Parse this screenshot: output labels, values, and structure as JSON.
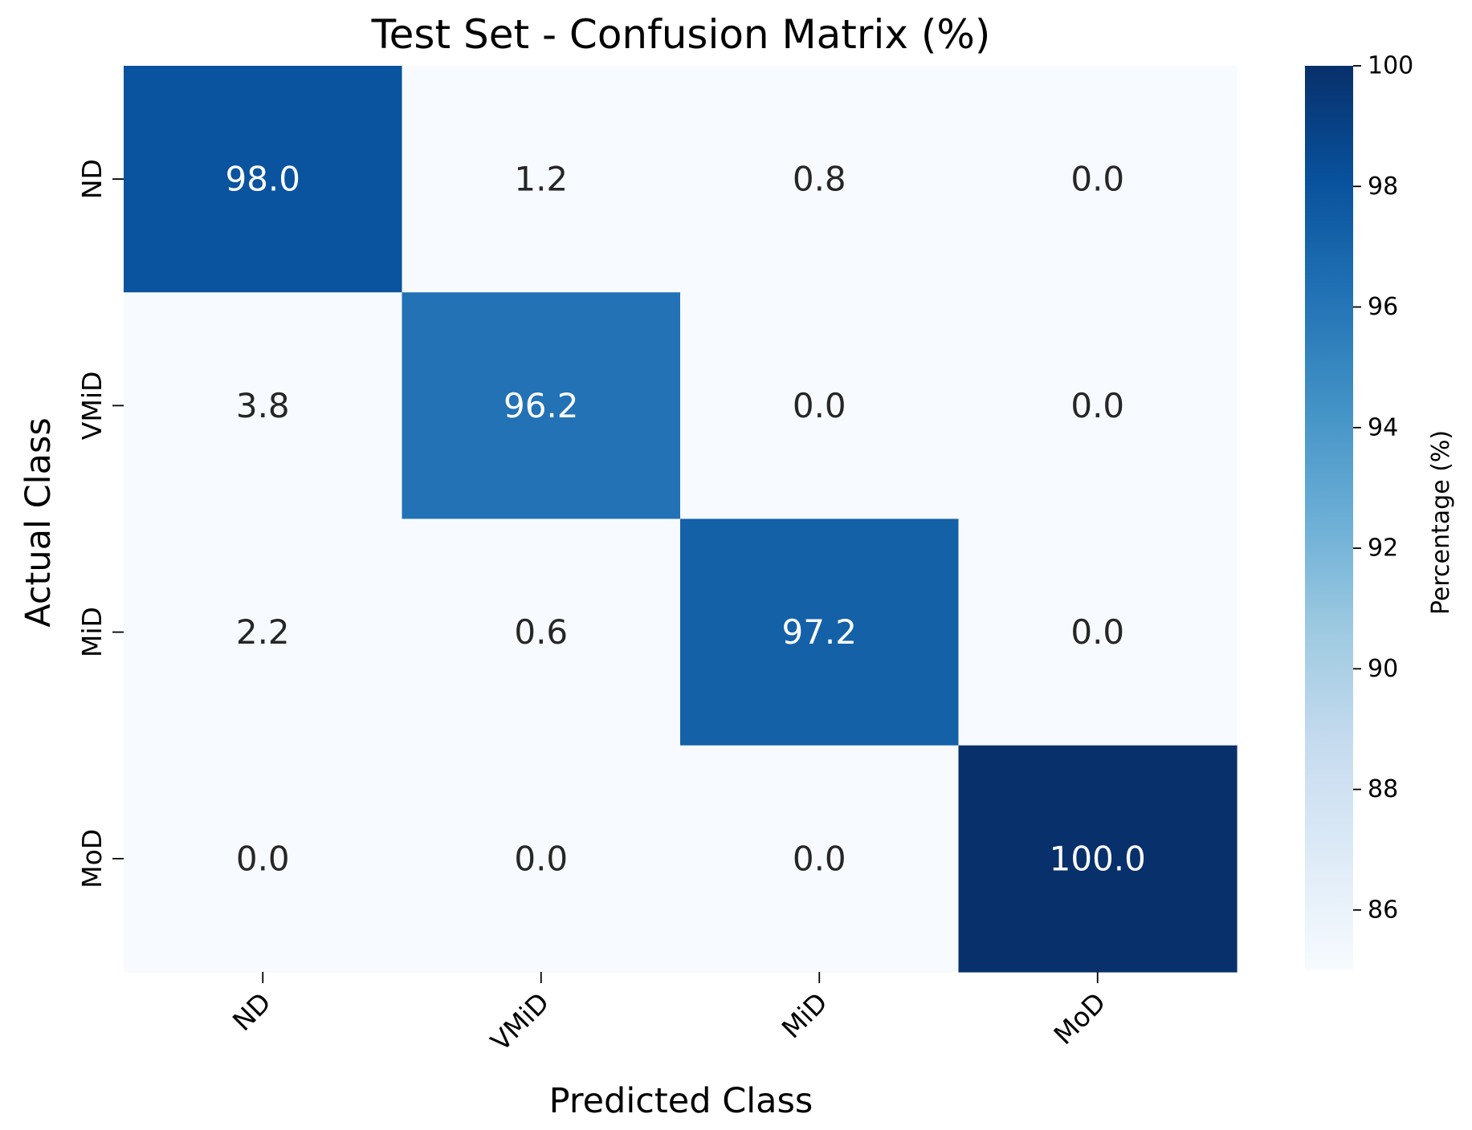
{
  "chart_data": {
    "type": "heatmap",
    "title": "Test Set - Confusion Matrix (%)",
    "xlabel": "Predicted Class",
    "ylabel": "Actual Class",
    "x_categories": [
      "ND",
      "VMiD",
      "MiD",
      "MoD"
    ],
    "y_categories": [
      "ND",
      "VMiD",
      "MiD",
      "MoD"
    ],
    "values": [
      [
        98.0,
        1.2,
        0.8,
        0.0
      ],
      [
        3.8,
        96.2,
        0.0,
        0.0
      ],
      [
        2.2,
        0.6,
        97.2,
        0.0
      ],
      [
        0.0,
        0.0,
        0.0,
        100.0
      ]
    ],
    "cell_labels": [
      [
        "98.0",
        "1.2",
        "0.8",
        "0.0"
      ],
      [
        "3.8",
        "96.2",
        "0.0",
        "0.0"
      ],
      [
        "2.2",
        "0.6",
        "97.2",
        "0.0"
      ],
      [
        "0.0",
        "0.0",
        "0.0",
        "100.0"
      ]
    ],
    "colorbar": {
      "label": "Percentage (%)",
      "range": [
        85,
        100
      ],
      "ticks": [
        86,
        88,
        90,
        92,
        94,
        96,
        98,
        100
      ],
      "colormap": "Blues"
    }
  }
}
